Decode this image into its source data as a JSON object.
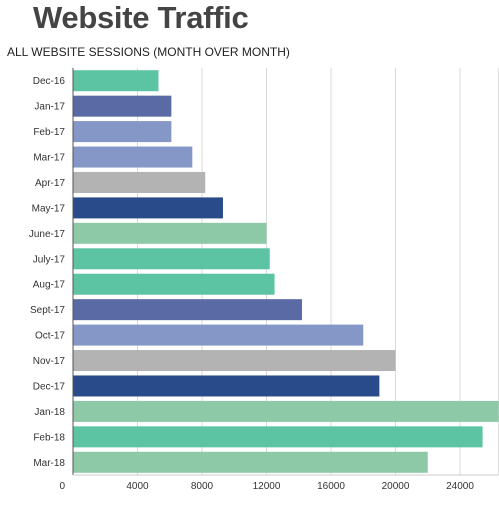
{
  "chart_data": {
    "type": "bar",
    "orientation": "horizontal",
    "title": "Website Traffic",
    "subtitle": "ALL WEBSITE SESSIONS (MONTH OVER MONTH)",
    "categories": [
      "Dec-16",
      "Jan-17",
      "Feb-17",
      "Mar-17",
      "Apr-17",
      "May-17",
      "June-17",
      "July-17",
      "Aug-17",
      "Sept-17",
      "Oct-17",
      "Nov-17",
      "Dec-17",
      "Jan-18",
      "Feb-18",
      "Mar-18"
    ],
    "values": [
      5300,
      6100,
      6100,
      7400,
      8200,
      9300,
      12000,
      12200,
      12500,
      14200,
      18000,
      20000,
      19000,
      26400,
      25400,
      22000
    ],
    "bar_colors": [
      "#5dc4a3",
      "#5a6aa5",
      "#8497c6",
      "#8497c6",
      "#b3b3b3",
      "#2a4b8a",
      "#8ec9a7",
      "#5dc4a3",
      "#5dc4a3",
      "#5a6aa5",
      "#8497c6",
      "#b3b3b3",
      "#2a4b8a",
      "#8ec9a7",
      "#5dc4a3",
      "#8ec9a7"
    ],
    "xticks": [
      0,
      4000,
      8000,
      12000,
      16000,
      20000,
      24000
    ],
    "xlim": [
      0,
      26400
    ],
    "grid": true,
    "legend": "none"
  }
}
